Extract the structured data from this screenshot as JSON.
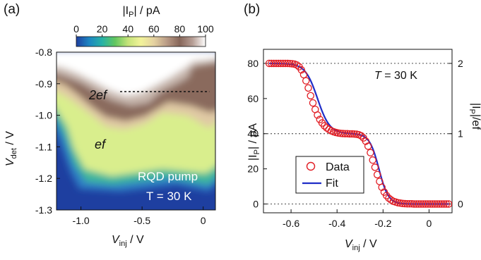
{
  "chart_data": [
    {
      "id": "a",
      "panel_label": "(a)",
      "type": "heatmap",
      "xlabel_main": "V",
      "xlabel_sub": "inj",
      "xlabel_unit": " / V",
      "ylabel_main": "V",
      "ylabel_sub": "det",
      "ylabel_unit": " / V",
      "xlim": [
        -1.2,
        0.1
      ],
      "ylim": [
        -1.3,
        -0.8
      ],
      "xticks": [
        -1.0,
        -0.5,
        0
      ],
      "xtick_labels": [
        "-1.0",
        "-0.5",
        "0"
      ],
      "yticks": [
        -0.8,
        -0.9,
        -1.0,
        -1.1,
        -1.2,
        -1.3
      ],
      "ytick_labels": [
        "-0.8",
        "-0.9",
        "-1.0",
        "-1.1",
        "-1.2",
        "-1.3"
      ],
      "colorbar": {
        "label_pre": "|I",
        "label_sub": "P",
        "label_post": "| / pA",
        "range": [
          0,
          100
        ],
        "ticks": [
          0,
          20,
          40,
          60,
          80,
          100
        ],
        "tick_labels": [
          "0",
          "20",
          "40",
          "60",
          "80",
          "100"
        ],
        "colors": [
          "#1e3fa0",
          "#1d86c2",
          "#27b2a6",
          "#62c65f",
          "#c5e37a",
          "#f2f39a",
          "#e5d2a1",
          "#b99b86",
          "#86665a",
          "#b79f96",
          "#ffffff"
        ]
      },
      "plateau_values_pA": [
        0,
        40,
        80
      ],
      "annotations": {
        "two_ef": "2ef",
        "ef": "ef",
        "pump_label": "RQD pump",
        "temp_label": "T = 30 K",
        "dashed_line_y": -0.925,
        "dashed_line_x": [
          -0.68,
          0.05
        ]
      }
    },
    {
      "id": "b",
      "panel_label": "(b)",
      "type": "scatter",
      "xlabel_main": "V",
      "xlabel_sub": "inj",
      "xlabel_unit": " / V",
      "ylabel_pre": "|I",
      "ylabel_sub": "P",
      "ylabel_post": "| / pA",
      "y2label_pre": "|I",
      "y2label_sub": "P",
      "y2label_post": "|/ef",
      "xlim": [
        -0.72,
        0.1
      ],
      "ylim": [
        -5,
        88
      ],
      "xticks": [
        -0.6,
        -0.4,
        -0.2,
        0
      ],
      "xtick_labels": [
        "-0.6",
        "-0.4",
        "-0.2",
        "0"
      ],
      "yticks": [
        0,
        20,
        40,
        60,
        80
      ],
      "ytick_labels": [
        "0",
        "20",
        "40",
        "60",
        "80"
      ],
      "y2ticks": [
        0,
        40,
        80
      ],
      "y2tick_labels": [
        "0",
        "1",
        "2"
      ],
      "hlines": [
        0,
        40,
        80
      ],
      "temp_label": "T = 30 K",
      "legend": {
        "data": "Data",
        "fit": "Fit",
        "position": "lower-left"
      },
      "series_colors": {
        "data": "#e11d24",
        "fit": "#1f2dc7"
      },
      "data_points": {
        "x": [
          -0.695,
          -0.685,
          -0.675,
          -0.665,
          -0.655,
          -0.645,
          -0.635,
          -0.625,
          -0.615,
          -0.605,
          -0.595,
          -0.585,
          -0.575,
          -0.565,
          -0.555,
          -0.545,
          -0.535,
          -0.525,
          -0.515,
          -0.505,
          -0.495,
          -0.485,
          -0.475,
          -0.465,
          -0.455,
          -0.445,
          -0.435,
          -0.425,
          -0.415,
          -0.405,
          -0.395,
          -0.385,
          -0.375,
          -0.365,
          -0.355,
          -0.345,
          -0.335,
          -0.325,
          -0.315,
          -0.305,
          -0.295,
          -0.285,
          -0.275,
          -0.265,
          -0.255,
          -0.245,
          -0.235,
          -0.225,
          -0.215,
          -0.205,
          -0.195,
          -0.185,
          -0.175,
          -0.165,
          -0.155,
          -0.145,
          -0.135,
          -0.125,
          -0.115,
          -0.105,
          -0.095,
          -0.085,
          -0.075,
          -0.065,
          -0.055,
          -0.045,
          -0.035,
          -0.025,
          -0.015,
          -0.005,
          0.005,
          0.015,
          0.025,
          0.035,
          0.045,
          0.055,
          0.065,
          0.075,
          0.085
        ],
        "y": [
          80.0,
          80.0,
          80.0,
          80.0,
          80.0,
          80.0,
          80.0,
          80.0,
          80.0,
          79.9,
          79.8,
          79.6,
          79.1,
          78.1,
          76.3,
          73.6,
          70.1,
          66.0,
          61.6,
          57.5,
          53.8,
          50.6,
          48.1,
          46.1,
          44.5,
          43.3,
          42.4,
          41.6,
          41.1,
          40.7,
          40.4,
          40.2,
          40.1,
          40.0,
          40.0,
          39.9,
          39.9,
          39.8,
          39.7,
          39.4,
          38.8,
          37.6,
          35.7,
          32.9,
          29.2,
          25.0,
          20.9,
          16.7,
          12.8,
          9.5,
          6.8,
          4.8,
          3.3,
          2.3,
          1.5,
          1.1,
          0.7,
          0.5,
          0.3,
          0.2,
          0.1,
          0.1,
          0.1,
          0.0,
          0.0,
          0.0,
          0.0,
          0.0,
          0.0,
          0.0,
          0.0,
          0.0,
          0.0,
          0.0,
          0.0,
          0.0,
          0.0,
          0.0,
          0.0
        ]
      },
      "fit_model": {
        "steps": [
          {
            "center": -0.485,
            "width": 0.0265,
            "height": 40
          },
          {
            "center": -0.218,
            "width": 0.0205,
            "height": 40
          }
        ],
        "x_range": [
          -0.695,
          0.085
        ]
      }
    }
  ]
}
